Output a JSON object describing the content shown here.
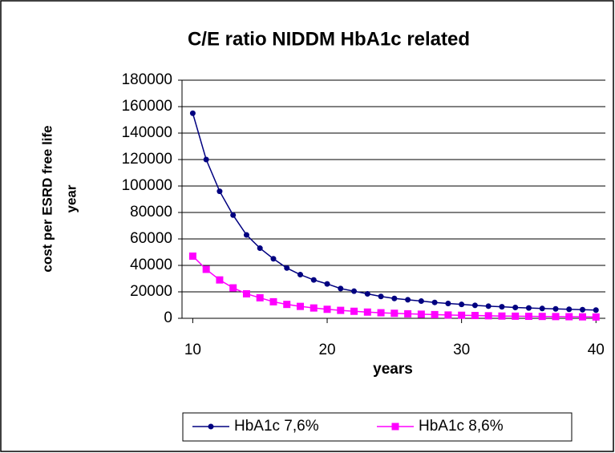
{
  "chart_data": {
    "type": "line",
    "title": "C/E ratio NIDDM HbA1c related",
    "x_label": "years",
    "y_label": [
      "cost per ESRD free life",
      "year"
    ],
    "x": [
      10,
      11,
      12,
      13,
      14,
      15,
      16,
      17,
      18,
      19,
      20,
      21,
      22,
      23,
      24,
      25,
      26,
      27,
      28,
      29,
      30,
      31,
      32,
      33,
      34,
      35,
      36,
      37,
      38,
      39,
      40
    ],
    "series": [
      {
        "name": "HbA1c 7,6%",
        "color": "#000080",
        "marker": "circle",
        "values": [
          155000,
          120000,
          96000,
          78000,
          63000,
          53000,
          45000,
          38000,
          33000,
          29000,
          26000,
          22500,
          20500,
          18500,
          16500,
          15000,
          14000,
          13000,
          12000,
          11200,
          10500,
          9800,
          9200,
          8700,
          8200,
          7800,
          7400,
          7100,
          6800,
          6500,
          6200
        ]
      },
      {
        "name": "HbA1c 8,6%",
        "color": "#ff00ff",
        "marker": "square",
        "values": [
          47000,
          37000,
          29000,
          23000,
          18500,
          15500,
          12500,
          10500,
          9000,
          7800,
          6800,
          6000,
          5300,
          4700,
          4200,
          3800,
          3400,
          3100,
          2800,
          2500,
          2300,
          2100,
          1900,
          1700,
          1600,
          1500,
          1400,
          1300,
          1200,
          1100,
          1000
        ]
      }
    ],
    "xlim": [
      9.2,
      40.7
    ],
    "xticks": [
      10,
      20,
      30,
      40
    ],
    "ylim": [
      0,
      180000
    ],
    "yticks": [
      0,
      20000,
      40000,
      60000,
      80000,
      100000,
      120000,
      140000,
      160000,
      180000
    ],
    "grid": true,
    "legend": "bottom"
  }
}
